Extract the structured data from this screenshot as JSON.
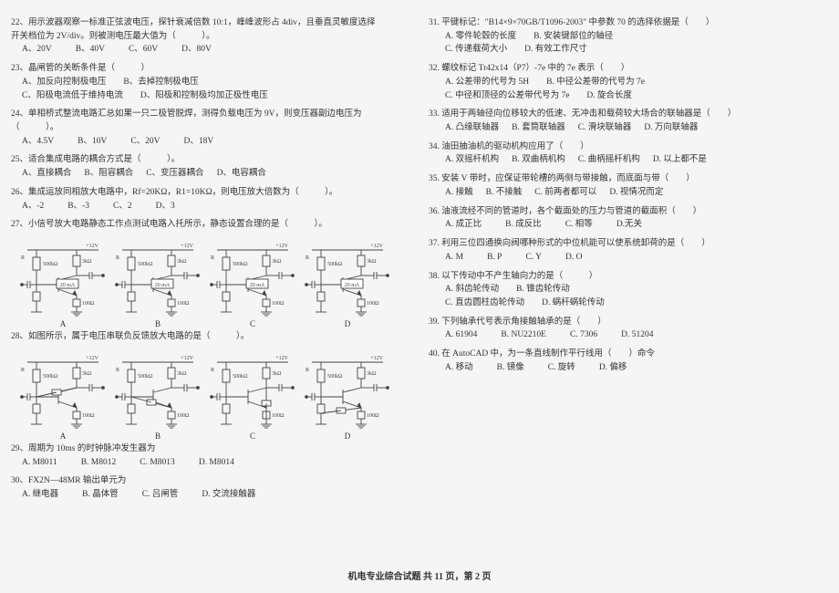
{
  "left": {
    "q22": {
      "stem1": "22、用示波器观察一标准正弦波电压，探针衰减倍数 10:1，峰峰波形占 4div，且垂直灵敏度选择",
      "stem2": "开关档位为 2V/div。则被测电压最大值为（　　　）。",
      "opts": [
        "A、20V",
        "B、40V",
        "C、60V",
        "D、80V"
      ]
    },
    "q23": {
      "stem": "23、晶闸管的关断条件是（　　　）",
      "opts": [
        "A、加反向控制极电压　　B、去掉控制极电压",
        "C、阳极电流低于维持电流　　D、阳极和控制极均加正极性电压"
      ]
    },
    "q24": {
      "stem1": "24、单相桥式整流电路汇总如果一只二极管脱焊，测得负载电压为 9V，则变压器副边电压为",
      "stem2": "（　　　）。",
      "opts": [
        "A、4.5V",
        "B、10V",
        "C、20V",
        "D、18V"
      ]
    },
    "q25": {
      "stem": "25、适合集成电路的耦合方式是（　　　）。",
      "opts": [
        "A、直接耦合",
        "B、阻容耦合",
        "C、变压器耦合",
        "D、电容耦合"
      ]
    },
    "q26": {
      "stem": "26、集成运放同相放大电路中，Rf=20KΩ，R1=10KΩ，则电压放大倍数为（　　　）。",
      "opts": [
        "A、-2",
        "B、-3",
        "C、2",
        "D、3"
      ]
    },
    "q27": {
      "stem": "27、小信号放大电路静态工作点测试电路入托所示，静态设置合理的是（　　　）。"
    },
    "figlabels": [
      "A",
      "B",
      "C",
      "D"
    ],
    "q28": {
      "stem": "28、如图所示，属于电压串联负反馈放大电路的是（　　　）。"
    },
    "q29": {
      "stem": "29、周期为 10ms 的时钟脉冲发生器为",
      "opts": [
        "A. M8011",
        "B. M8012",
        "C. M8013",
        "D. M8014"
      ]
    },
    "q30": {
      "stem": "30、FX2N—48MR 输出单元为",
      "opts": [
        "A. 继电器",
        "B. 晶体管",
        "C. 吕闸管",
        "D. 交流接触器"
      ]
    },
    "circuit": {
      "vcc": "+12V",
      "r_top": "500kΩ",
      "r_coll": "3kΩ",
      "meas": "20 mA",
      "r_emit": "100Ω"
    }
  },
  "right": {
    "q31": {
      "stem": "31. 平键标记：\"B14×9×70GB/T1096-2003\" 中参数 70 的选择依据是（　　）",
      "opts": [
        "A. 零件轮毂的长度　　B. 安装键部位的轴径",
        "C. 传递载荷大小　　D. 有效工作尺寸"
      ]
    },
    "q32": {
      "stem": "32. 螺纹标记 Tr42x14（P7）-7e 中的 7e 表示（　　）",
      "opts": [
        "A. 公差带的代号为 5H　　B. 中径公差带的代号为 7e",
        "C. 中径和顶径的公差带代号为 7e　　D. 旋合长度"
      ]
    },
    "q33": {
      "stem": "33. 适用于两轴径向位移较大的低速、无冲击和载荷较大场合的联轴器是（　　）",
      "opts": [
        "A. 凸缘联轴器",
        "B. 套筒联轴器",
        "C. 滑块联轴器",
        "D. 万向联轴器"
      ]
    },
    "q34": {
      "stem": "34. 油田抽油机的驱动机构应用了（　　）",
      "opts": [
        "A. 双摇杆机构",
        "B. 双曲柄机构",
        "C. 曲柄摇杆机构",
        "D. 以上都不是"
      ]
    },
    "q35": {
      "stem": "35. 安装 V 带时，应保证带轮槽的两侧与带接触，而底面与带（　　）",
      "opts": [
        "A. 接触",
        "B. 不接触",
        "C. 前两者都可以",
        "D. 视情况而定"
      ]
    },
    "q36": {
      "stem": "36. 油液流经不同的管道时，各个截面处的压力与管道的截面积（　　）",
      "opts": [
        "A. 成正比",
        "B. 成反比",
        "C. 相等",
        "D.无关"
      ]
    },
    "q37": {
      "stem": "37. 利用三位四通换向阀哪种形式的中位机能可以使系统卸荷的是（　　）",
      "opts": [
        "A. M",
        "B. P",
        "C. Y",
        "D. O"
      ]
    },
    "q38": {
      "stem": "38. 以下传动中不产生轴向力的是（　　　）",
      "opts": [
        "A. 斜齿轮传动　　B. 锥齿轮传动",
        "C. 直齿圆柱齿轮传动　　D. 蜗杆蜗轮传动"
      ]
    },
    "q39": {
      "stem": "39. 下列轴承代号表示角接触轴承的是（　　）",
      "opts": [
        "A. 61904",
        "B. NU2210E",
        "C. 7306",
        "D. 51204"
      ]
    },
    "q40": {
      "stem": "40. 在 AutoCAD 中，为一条直线制作平行线用（　　）命令",
      "opts": [
        "A. 移动",
        "B. 镜像",
        "C. 旋转",
        "D. 偏移"
      ]
    }
  },
  "footer": "机电专业综合试题  共 11 页，第 2 页",
  "fig_style": {
    "w": 98,
    "h": 84,
    "stroke": "#444",
    "sw": 0.9,
    "font": 6
  }
}
